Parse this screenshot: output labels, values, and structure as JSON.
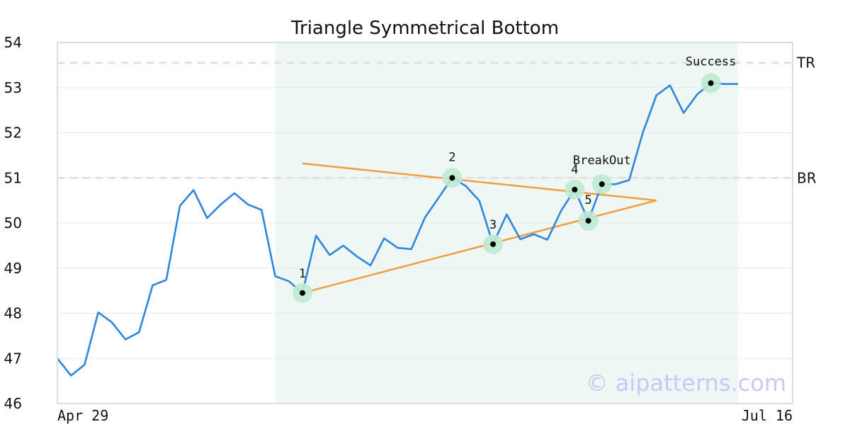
{
  "chart_data": {
    "type": "line",
    "title": "Triangle Symmetrical Bottom",
    "ylim": [
      46,
      54
    ],
    "yticks": [
      46,
      47,
      48,
      49,
      50,
      51,
      52,
      53,
      54
    ],
    "x_tick_labels": [
      "Apr 29",
      "Jul 16"
    ],
    "grid": true,
    "colors": {
      "price": "#2e86de",
      "triangle": "#f39c42",
      "region": "#eef7f3",
      "marker_halo": "#bfe9d3",
      "marker_dot": "#000000",
      "level_line": "#dddddd",
      "frame": "#dddddd",
      "grid": "#e8e8e8"
    },
    "series": [
      {
        "values": [
          47.0,
          46.62,
          46.86,
          48.02,
          47.8,
          47.42,
          47.58,
          48.62,
          48.74,
          50.38,
          50.73,
          50.11,
          50.41,
          50.66,
          50.41,
          50.29,
          48.82,
          48.71,
          48.45,
          49.72,
          49.29,
          49.5,
          49.26,
          49.06,
          49.66,
          49.45,
          49.42,
          50.12,
          50.56,
          51.0,
          50.82,
          50.49,
          49.53,
          50.19,
          49.64,
          49.75,
          49.63,
          50.27,
          50.74,
          50.05,
          50.86,
          50.86,
          50.95,
          52.0,
          52.83,
          53.05,
          52.44,
          52.85,
          53.1,
          53.08,
          53.08
        ]
      }
    ],
    "pattern_region": {
      "start_index": 16,
      "end_index": 50
    },
    "triangle": {
      "upper": {
        "from": {
          "x": 18,
          "y": 51.32
        },
        "to": {
          "x": 44,
          "y": 50.5
        }
      },
      "lower": {
        "from": {
          "x": 18,
          "y": 48.45
        },
        "to": {
          "x": 44,
          "y": 50.5
        }
      }
    },
    "levels": [
      {
        "label": "TR",
        "y": 53.55
      },
      {
        "label": "BR",
        "y": 51.0
      }
    ],
    "points": [
      {
        "label": "1",
        "x": 18,
        "y": 48.45
      },
      {
        "label": "2",
        "x": 29,
        "y": 51.0
      },
      {
        "label": "3",
        "x": 32,
        "y": 49.53
      },
      {
        "label": "4",
        "x": 38,
        "y": 50.74
      },
      {
        "label": "5",
        "x": 39,
        "y": 50.05
      },
      {
        "label": "BreakOut",
        "x": 40,
        "y": 50.86
      },
      {
        "label": "Success",
        "x": 48,
        "y": 53.1
      }
    ]
  },
  "watermark": "© aipatterns.com"
}
